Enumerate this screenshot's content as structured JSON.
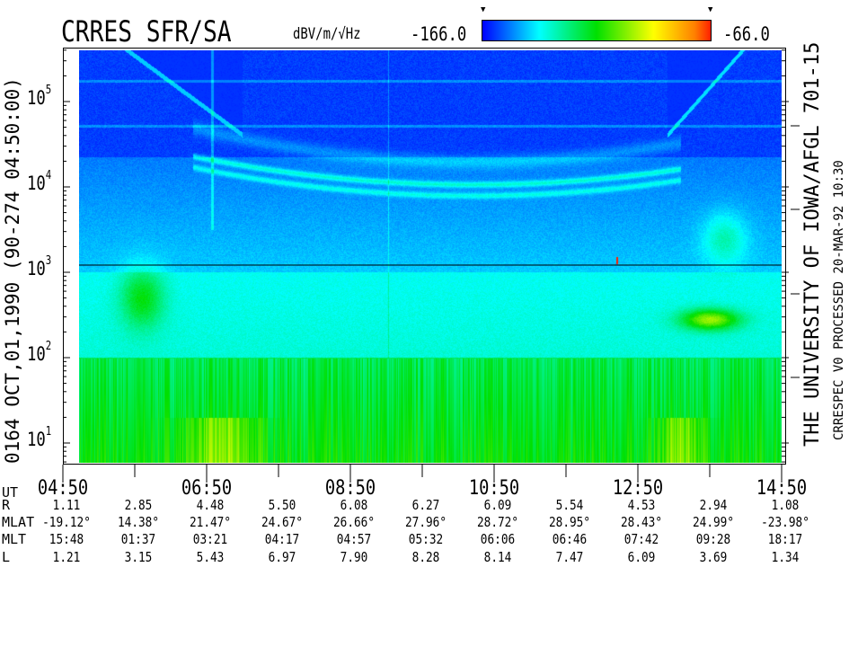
{
  "header": {
    "title": "CRRES SFR/SA",
    "units": "dBV/m/√Hz",
    "colorbar_min": "-166.0",
    "colorbar_max": "-66.0",
    "colorbar_colors": [
      "#0000ff",
      "#00ffff",
      "#00e000",
      "#ffff00",
      "#ff8000",
      "#ff2000"
    ]
  },
  "left_label": "0164  OCT,01,1990  (90-274  04:50:00)",
  "right_label": "THE UNIVERSITY OF IOWA/AFGL 701-15",
  "right_sublabel": "CRRESPEC V0   PROCESSED 20-MAR-92  10:30",
  "chart_data": {
    "type": "heatmap",
    "title": "CRRES SFR/SA",
    "xlabel": "UT",
    "ylabel": "",
    "yscale": "log",
    "ylim": [
      6,
      400000
    ],
    "xlim": [
      "04:50",
      "14:50"
    ],
    "y_ticks": [
      {
        "base": "10",
        "exp": "1"
      },
      {
        "base": "10",
        "exp": "2"
      },
      {
        "base": "10",
        "exp": "3"
      },
      {
        "base": "10",
        "exp": "4"
      },
      {
        "base": "10",
        "exp": "5"
      }
    ],
    "x_ticks": [
      "04:50",
      "06:50",
      "08:50",
      "10:50",
      "12:50",
      "14:50"
    ],
    "color_range": [
      -166.0,
      -66.0
    ],
    "color_units": "dBV/m/√Hz"
  },
  "ephemeris": {
    "rows": [
      {
        "label": "UT",
        "values": []
      },
      {
        "label": "R",
        "values": [
          "1.11",
          "2.85",
          "4.48",
          "5.50",
          "6.08",
          "6.27",
          "6.09",
          "5.54",
          "4.53",
          "2.94",
          "1.08"
        ]
      },
      {
        "label": "MLAT",
        "values": [
          "-19.12°",
          "14.38°",
          "21.47°",
          "24.67°",
          "26.66°",
          "27.96°",
          "28.72°",
          "28.95°",
          "28.43°",
          "24.99°",
          "-23.98°"
        ]
      },
      {
        "label": "MLT",
        "values": [
          "15:48",
          "01:37",
          "03:21",
          "04:17",
          "04:57",
          "05:32",
          "06:06",
          "06:46",
          "07:42",
          "09:28",
          "18:17"
        ]
      },
      {
        "label": "L",
        "values": [
          "1.21",
          "3.15",
          "5.43",
          "6.97",
          "7.90",
          "8.28",
          "8.14",
          "7.47",
          "6.09",
          "3.69",
          "1.34"
        ]
      }
    ]
  }
}
